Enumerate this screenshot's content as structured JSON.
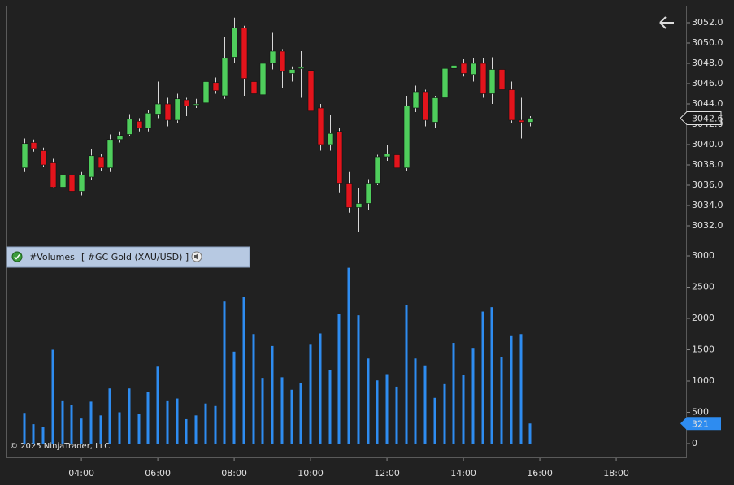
{
  "chart_data": [
    {
      "type": "candlestick",
      "x": [
        2.5,
        2.75,
        3,
        3.25,
        3.5,
        3.75,
        4,
        4.25,
        4.5,
        4.75,
        5,
        5.25,
        5.5,
        5.75,
        6,
        6.25,
        6.5,
        6.75,
        7,
        7.25,
        7.5,
        7.75,
        8,
        8.25,
        8.5,
        8.75,
        9,
        9.25,
        9.5,
        9.75,
        10,
        10.25,
        10.5,
        10.75,
        11,
        11.25,
        11.5,
        11.75,
        12,
        12.25,
        12.5,
        12.75,
        13,
        13.25,
        13.5,
        13.75,
        14,
        14.25,
        14.5,
        14.75,
        15,
        15.25,
        15.5,
        15.75
      ],
      "open": [
        3037.7,
        3040.2,
        3039.4,
        3038.2,
        3035.8,
        3037.0,
        3035.4,
        3036.8,
        3038.8,
        3037.7,
        3040.5,
        3041.0,
        3042.3,
        3041.6,
        3043.0,
        3044.0,
        3042.4,
        3044.4,
        3043.9,
        3044.1,
        3046.1,
        3044.8,
        3048.6,
        3051.5,
        3046.2,
        3044.9,
        3048.0,
        3049.2,
        3047.0,
        3047.5,
        3047.3,
        3043.6,
        3040.0,
        3041.3,
        3036.2,
        3033.8,
        3034.2,
        3036.2,
        3038.8,
        3039.0,
        3037.7,
        3043.6,
        3045.2,
        3042.2,
        3044.6,
        3047.5,
        3048.0,
        3046.9,
        3048.0,
        3045.0,
        3047.4,
        3045.4,
        3042.4,
        3042.2
      ],
      "high": [
        3040.6,
        3040.5,
        3039.7,
        3038.6,
        3037.3,
        3037.3,
        3037.3,
        3039.6,
        3039.1,
        3041.0,
        3041.3,
        3043.0,
        3042.6,
        3043.4,
        3046.2,
        3044.6,
        3045.0,
        3044.6,
        3044.5,
        3046.9,
        3046.6,
        3050.6,
        3052.5,
        3051.7,
        3046.4,
        3048.2,
        3051.0,
        3049.4,
        3047.7,
        3049.2,
        3047.4,
        3044.0,
        3042.9,
        3041.6,
        3037.3,
        3035.7,
        3036.6,
        3039.0,
        3040.0,
        3039.2,
        3044.8,
        3045.8,
        3045.4,
        3044.8,
        3047.8,
        3048.5,
        3048.4,
        3048.5,
        3048.5,
        3048.6,
        3048.8,
        3046.2,
        3044.6,
        3042.8
      ],
      "low": [
        3037.3,
        3039.3,
        3037.8,
        3035.7,
        3035.4,
        3035.1,
        3035.0,
        3036.5,
        3037.4,
        3037.3,
        3040.2,
        3040.8,
        3041.3,
        3041.3,
        3042.6,
        3041.8,
        3042.1,
        3042.8,
        3043.6,
        3043.8,
        3045.0,
        3044.5,
        3048.0,
        3044.8,
        3042.9,
        3042.9,
        3047.4,
        3045.6,
        3046.2,
        3044.6,
        3043.0,
        3039.4,
        3039.4,
        3035.3,
        3033.3,
        3031.4,
        3033.6,
        3036.0,
        3038.4,
        3036.2,
        3037.4,
        3043.2,
        3041.8,
        3041.6,
        3044.2,
        3047.2,
        3046.7,
        3046.2,
        3044.6,
        3044.0,
        3045.3,
        3042.1,
        3040.6,
        3041.8
      ],
      "close": [
        3040.1,
        3039.6,
        3038.0,
        3035.8,
        3037.0,
        3035.4,
        3037.0,
        3038.9,
        3037.7,
        3040.5,
        3040.9,
        3042.5,
        3041.6,
        3043.1,
        3044.0,
        3042.4,
        3044.5,
        3043.8,
        3044.0,
        3046.2,
        3045.3,
        3048.5,
        3051.5,
        3046.5,
        3045.0,
        3048.0,
        3049.2,
        3047.2,
        3047.4,
        3047.6,
        3043.3,
        3040.0,
        3041.1,
        3036.2,
        3033.8,
        3034.2,
        3036.2,
        3038.8,
        3039.1,
        3037.7,
        3043.8,
        3045.2,
        3042.4,
        3044.6,
        3047.5,
        3047.8,
        3047.0,
        3048.0,
        3045.0,
        3047.4,
        3045.4,
        3042.4,
        3042.2,
        3042.6
      ],
      "up_color": "#4fce5c",
      "down_color": "#e3141c",
      "xlim": [
        2.04,
        19.85
      ],
      "ylim": [
        3030.24,
        3053.6
      ],
      "yticks": [
        {
          "value": 3032,
          "label": "3032.0"
        },
        {
          "value": 3034,
          "label": "3034.0"
        },
        {
          "value": 3036,
          "label": "3036.0"
        },
        {
          "value": 3038,
          "label": "3038.0"
        },
        {
          "value": 3040,
          "label": "3040.0"
        },
        {
          "value": 3042,
          "label": "3042.0"
        },
        {
          "value": 3044,
          "label": "3044.0"
        },
        {
          "value": 3046,
          "label": "3046.0"
        },
        {
          "value": 3048,
          "label": "3048.0"
        },
        {
          "value": 3050,
          "label": "3050.0"
        },
        {
          "value": 3052,
          "label": "3052.0"
        }
      ]
    },
    {
      "type": "bar",
      "title": "#Volumes",
      "subtitle": "[ #GC Gold (XAU/USD) ]",
      "values": [
        490,
        310,
        270,
        1500,
        690,
        620,
        400,
        670,
        450,
        880,
        500,
        880,
        470,
        820,
        1230,
        690,
        720,
        390,
        450,
        640,
        600,
        2270,
        1470,
        2350,
        1750,
        1050,
        1560,
        1060,
        860,
        970,
        1580,
        1760,
        1180,
        2070,
        2810,
        2050,
        1360,
        1010,
        1110,
        910,
        2220,
        1360,
        1250,
        730,
        950,
        1610,
        1100,
        1530,
        2110,
        2180,
        1380,
        1730,
        1750,
        321
      ],
      "color": "#2e8cf0",
      "ylim": [
        -247,
        3156
      ],
      "yticks": [
        0,
        500,
        1000,
        1500,
        2000,
        2500,
        3000
      ],
      "xticks": [
        {
          "value": 4,
          "label": "04:00"
        },
        {
          "value": 6,
          "label": "06:00"
        },
        {
          "value": 8,
          "label": "08:00"
        },
        {
          "value": 10,
          "label": "10:00"
        },
        {
          "value": 12,
          "label": "12:00"
        },
        {
          "value": 14,
          "label": "14:00"
        },
        {
          "value": 16,
          "label": "16:00"
        },
        {
          "value": 18,
          "label": "18:00"
        }
      ]
    }
  ],
  "copyright": "© 2025 NinjaTrader, LLC"
}
